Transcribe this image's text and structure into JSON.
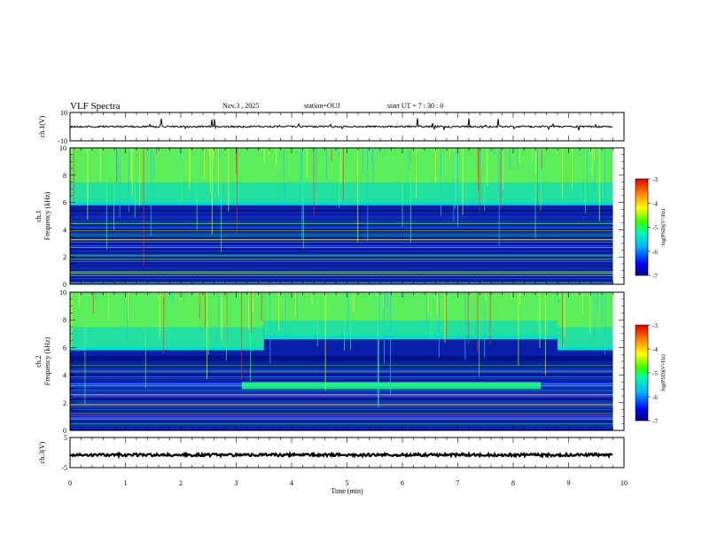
{
  "header": {
    "title": "VLF Spectra",
    "date": "Nov.3  , 2025",
    "station": "station=OUJ",
    "start": "start  UT  =   7 : 30 : 0"
  },
  "chart_data": [
    {
      "id": "ch1-waveform",
      "type": "line",
      "ylabel": "ch.1(V)",
      "ylim": [
        -10,
        10
      ],
      "yticks": [
        -10,
        10
      ],
      "baseline": 0,
      "xlim": [
        0,
        10
      ]
    },
    {
      "id": "ch1-spectrogram",
      "type": "heatmap",
      "ylabel_line1": "ch.1",
      "ylabel_line2": "Frequency  (kHz)",
      "ylim": [
        0,
        10
      ],
      "yticks": [
        0,
        2,
        4,
        6,
        8,
        10
      ],
      "xlim": [
        0,
        9.8
      ],
      "colorbar": {
        "label": "log(PSD)(V²/Hz)",
        "range": [
          -7,
          -3
        ],
        "ticks": [
          -7,
          -6,
          -5,
          -4,
          -3
        ]
      }
    },
    {
      "id": "ch2-spectrogram",
      "type": "heatmap",
      "ylabel_line1": "ch.2",
      "ylabel_line2": "Frequency  (kHz)",
      "ylim": [
        0,
        10
      ],
      "yticks": [
        0,
        2,
        4,
        6,
        8,
        10
      ],
      "xlim": [
        0,
        9.8
      ],
      "colorbar": {
        "label": "log(PSD)(V²/Hz)",
        "range": [
          -7,
          -3
        ],
        "ticks": [
          -7,
          -6,
          -5,
          -4,
          -3
        ]
      }
    },
    {
      "id": "ch3-waveform",
      "type": "line",
      "ylabel": "ch.3(V)",
      "ylim": [
        -5,
        5
      ],
      "yticks": [
        -5,
        5
      ],
      "baseline": -0.8,
      "xlim": [
        0,
        10
      ]
    }
  ],
  "xaxis": {
    "label": "Time  (min)",
    "ticks": [
      0,
      1,
      2,
      3,
      4,
      5,
      6,
      7,
      8,
      9,
      10
    ]
  }
}
